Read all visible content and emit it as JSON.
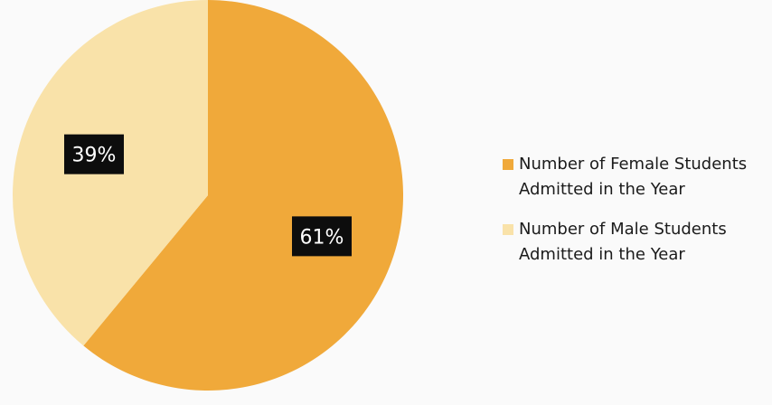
{
  "chart_data": {
    "type": "pie",
    "start_angle_deg": 0,
    "direction": "clockwise",
    "slices": [
      {
        "label": "Number of Female Students\nAdmitted in the Year",
        "value": 61,
        "data_label": "61%",
        "color": "#f0a93a"
      },
      {
        "label": "Number of Male Students\nAdmitted in the Year",
        "value": 39,
        "data_label": "39%",
        "color": "#f9e2a9"
      }
    ],
    "legend_position": "right",
    "label_box_color": "#0d0d0d"
  }
}
